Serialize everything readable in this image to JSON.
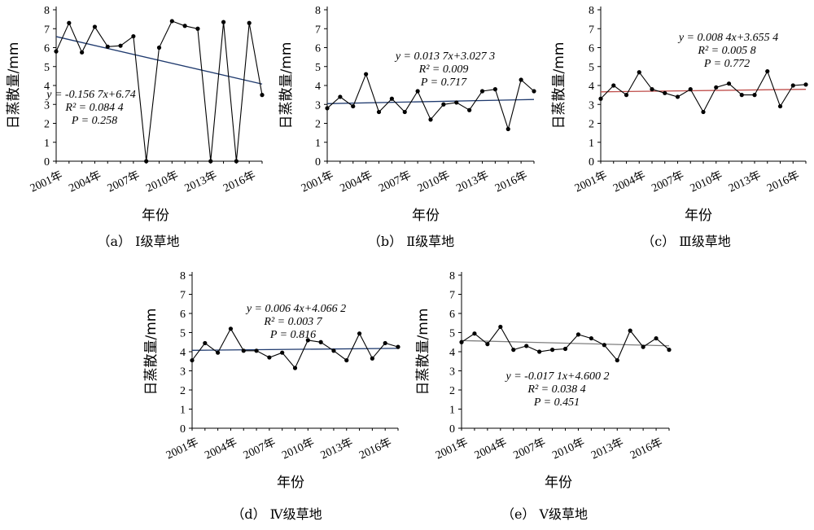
{
  "chart_data": [
    {
      "panel": "a",
      "type": "line",
      "caption": "（a） Ⅰ级草地",
      "xlabel": "年份",
      "ylabel": "日蒸散量/mm",
      "ylim": [
        0,
        8
      ],
      "x_tick_labels": [
        "2001年",
        "2004年",
        "2007年",
        "2010年",
        "2013年",
        "2016年"
      ],
      "x": [
        2001,
        2002,
        2003,
        2004,
        2005,
        2006,
        2007,
        2008,
        2009,
        2010,
        2011,
        2012,
        2013,
        2014,
        2015,
        2016,
        2017
      ],
      "values": [
        5.8,
        7.3,
        5.75,
        7.1,
        6.05,
        6.1,
        6.6,
        0,
        6.0,
        7.4,
        7.15,
        7.0,
        0,
        7.35,
        0,
        7.3,
        3.5
      ],
      "trend": {
        "slope": -0.1567,
        "intercept": 6.74,
        "color": "#1f3a6e"
      },
      "annotation": [
        "y = -0.156 7x+6.74",
        "R² = 0.084 4",
        "P = 0.258"
      ],
      "annotation_position": "middle-left"
    },
    {
      "panel": "b",
      "type": "line",
      "caption": "（b） Ⅱ级草地",
      "xlabel": "年份",
      "ylabel": "日蒸散量/mm",
      "ylim": [
        0,
        8
      ],
      "x_tick_labels": [
        "2001年",
        "2004年",
        "2007年",
        "2010年",
        "2013年",
        "2016年"
      ],
      "x": [
        2001,
        2002,
        2003,
        2004,
        2005,
        2006,
        2007,
        2008,
        2009,
        2010,
        2011,
        2012,
        2013,
        2014,
        2015,
        2016,
        2017
      ],
      "values": [
        2.8,
        3.4,
        2.9,
        4.6,
        2.6,
        3.3,
        2.6,
        3.7,
        2.2,
        3.0,
        3.1,
        2.7,
        3.7,
        3.8,
        1.7,
        4.3,
        3.7
      ],
      "trend": {
        "slope": 0.0137,
        "intercept": 3.0273,
        "color": "#1f3a6e"
      },
      "annotation": [
        "y = 0.013 7x+3.027 3",
        "R² = 0.009",
        "P = 0.717"
      ],
      "annotation_position": "top-center"
    },
    {
      "panel": "c",
      "type": "line",
      "caption": "（c） Ⅲ级草地",
      "xlabel": "年份",
      "ylabel": "日蒸散量/mm",
      "ylim": [
        0,
        8
      ],
      "x_tick_labels": [
        "2001年",
        "2004年",
        "2007年",
        "2010年",
        "2013年",
        "2016年"
      ],
      "x": [
        2001,
        2002,
        2003,
        2004,
        2005,
        2006,
        2007,
        2008,
        2009,
        2010,
        2011,
        2012,
        2013,
        2014,
        2015,
        2016,
        2017
      ],
      "values": [
        3.3,
        4.0,
        3.5,
        4.7,
        3.8,
        3.6,
        3.4,
        3.8,
        2.6,
        3.9,
        4.1,
        3.5,
        3.5,
        4.75,
        2.9,
        4.0,
        4.05
      ],
      "trend": {
        "slope": 0.0084,
        "intercept": 3.6554,
        "color": "#c0504d"
      },
      "annotation": [
        "y = 0.008 4x+3.655 4",
        "R² = 0.005 8",
        "P = 0.772"
      ],
      "annotation_position": "top-right"
    },
    {
      "panel": "d",
      "type": "line",
      "caption": "（d） Ⅳ级草地",
      "xlabel": "年份",
      "ylabel": "日蒸散量/mm",
      "ylim": [
        0,
        8
      ],
      "x_tick_labels": [
        "2001年",
        "2004年",
        "2007年",
        "2010年",
        "2013年",
        "2016年"
      ],
      "x": [
        2001,
        2002,
        2003,
        2004,
        2005,
        2006,
        2007,
        2008,
        2009,
        2010,
        2011,
        2012,
        2013,
        2014,
        2015,
        2016,
        2017
      ],
      "values": [
        3.55,
        4.45,
        3.95,
        5.2,
        4.05,
        4.05,
        3.7,
        3.95,
        3.15,
        4.6,
        4.5,
        4.05,
        3.55,
        4.95,
        3.65,
        4.45,
        4.25
      ],
      "trend": {
        "slope": 0.0064,
        "intercept": 4.0662,
        "color": "#1f3a6e"
      },
      "annotation": [
        "y = 0.006 4x+4.066 2",
        "R² = 0.003 7",
        "P = 0.816"
      ],
      "annotation_position": "top-center"
    },
    {
      "panel": "e",
      "type": "line",
      "caption": "（e） Ⅴ级草地",
      "xlabel": "年份",
      "ylabel": "日蒸散量/mm",
      "ylim": [
        0,
        8
      ],
      "x_tick_labels": [
        "2001年",
        "2004年",
        "2007年",
        "2010年",
        "2013年",
        "2016年"
      ],
      "x": [
        2001,
        2002,
        2003,
        2004,
        2005,
        2006,
        2007,
        2008,
        2009,
        2010,
        2011,
        2012,
        2013,
        2014,
        2015,
        2016,
        2017
      ],
      "values": [
        4.5,
        4.95,
        4.4,
        5.3,
        4.1,
        4.3,
        4.0,
        4.1,
        4.15,
        4.9,
        4.7,
        4.35,
        3.55,
        5.1,
        4.25,
        4.7,
        4.1
      ],
      "trend": {
        "slope": -0.0171,
        "intercept": 4.6002,
        "color": "#7f7f7f"
      },
      "annotation": [
        "y = -0.017 1x+4.600 2",
        "R² = 0.038 4",
        "P = 0.451"
      ],
      "annotation_position": "middle-center"
    }
  ]
}
